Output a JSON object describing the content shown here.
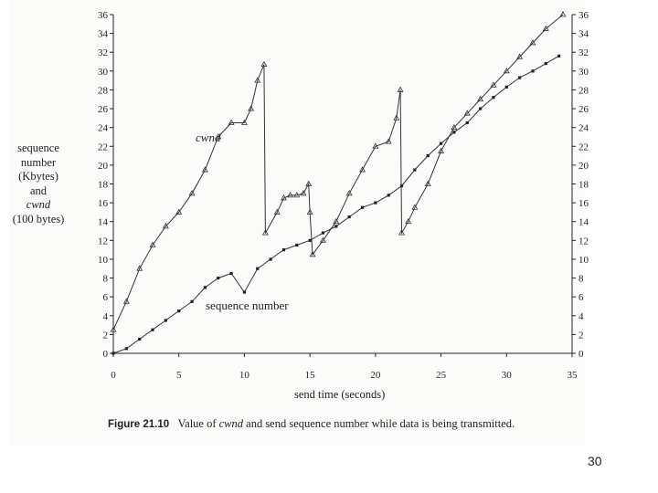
{
  "chart_data": {
    "type": "line",
    "title": "",
    "ylabel_lines": [
      "sequence",
      "number",
      "(Kbytes)",
      "and",
      "cwnd",
      "(100 bytes)"
    ],
    "xlabel": "send time (seconds)",
    "xlim": [
      0,
      35
    ],
    "ylim": [
      0,
      36
    ],
    "x_ticks": [
      0,
      5,
      10,
      15,
      20,
      25,
      30,
      35
    ],
    "y_ticks": [
      0,
      2,
      4,
      6,
      8,
      10,
      12,
      14,
      16,
      18,
      20,
      22,
      24,
      26,
      28,
      30,
      32,
      34,
      36
    ],
    "right_axis_ticks": [
      0,
      2,
      4,
      6,
      8,
      10,
      12,
      14,
      16,
      18,
      20,
      22,
      24,
      26,
      28,
      30,
      32,
      34,
      36
    ],
    "grid": false,
    "annotations": [
      {
        "text": "cwnd",
        "series": "cwnd"
      },
      {
        "text": "sequence number",
        "series": "sequence number"
      }
    ],
    "series": [
      {
        "name": "cwnd",
        "marker": "triangle",
        "x": [
          0,
          1,
          2,
          3,
          4,
          5,
          6,
          7,
          8,
          9,
          10,
          10.5,
          11,
          11.5,
          11.6,
          12.5,
          13,
          13.5,
          14,
          14.5,
          14.9,
          15,
          15.2,
          16,
          17,
          18,
          19,
          20,
          21,
          21.6,
          21.9,
          22,
          22.5,
          23,
          24,
          25,
          26,
          27,
          28,
          29,
          30,
          31,
          32,
          33,
          34.3
        ],
        "y": [
          2.5,
          5.5,
          9,
          11.5,
          13.5,
          15,
          17,
          19.5,
          23,
          24.5,
          24.5,
          26,
          29,
          30.7,
          12.8,
          15,
          16.5,
          16.8,
          16.8,
          17,
          18,
          15,
          10.5,
          12,
          14,
          17,
          19.5,
          22,
          22.5,
          25,
          28,
          12.8,
          14,
          15.5,
          18,
          21.5,
          24,
          25.5,
          27,
          28.5,
          30,
          31.5,
          33,
          34.5,
          36
        ]
      },
      {
        "name": "sequence number",
        "marker": "square",
        "x": [
          0,
          1,
          2,
          3,
          4,
          5,
          6,
          7,
          8,
          9,
          10,
          11,
          12,
          13,
          14,
          15,
          16,
          17,
          18,
          19,
          20,
          21,
          22,
          23,
          24,
          25,
          26,
          27,
          28,
          29,
          30,
          31,
          32,
          33,
          34
        ],
        "y": [
          0,
          0.5,
          1.5,
          2.5,
          3.5,
          4.5,
          5.5,
          7,
          8,
          8.5,
          6.5,
          9,
          10,
          11,
          11.5,
          12,
          12.8,
          13.5,
          14.5,
          15.5,
          16,
          16.8,
          17.8,
          19.5,
          21,
          22.3,
          23.5,
          24.5,
          26,
          27.2,
          28.3,
          29.3,
          30,
          30.8,
          31.6
        ]
      }
    ]
  },
  "figure": {
    "xlabel": "send time (seconds)",
    "caption_label": "Figure 21.10",
    "caption_pre": "Value of ",
    "caption_italic": "cwnd",
    "caption_post": " and send sequence number while data is being transmitted.",
    "annotation_cwnd": "cwnd",
    "annotation_seq": "sequence number",
    "ylabel": {
      "line1": "sequence",
      "line2": "number",
      "line3": "(Kbytes)",
      "line4": "and",
      "line5": "cwnd",
      "line6": "(100 bytes)"
    }
  },
  "slide": {
    "page_number": "30"
  },
  "colors": {
    "ink": "#222222",
    "paper": "#fbfbf9",
    "background": "#ffffff"
  }
}
